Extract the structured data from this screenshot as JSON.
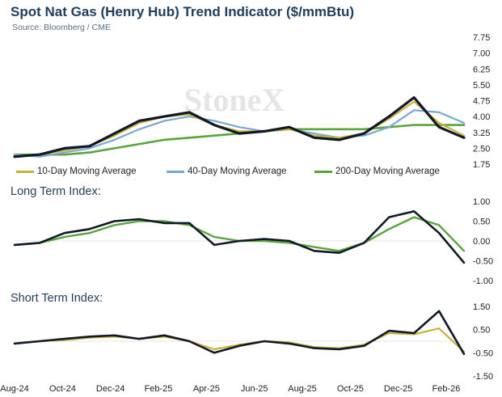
{
  "header": {
    "title": "Spot Nat Gas (Henry Hub) Trend Indicator ($/mmBtu)",
    "source": "Source: Bloomberg / CME",
    "watermark": "StoneX"
  },
  "panels": {
    "long_term_label": "Long Term Index:",
    "short_term_label": "Short Term Index:"
  },
  "colors": {
    "spot": "#111827",
    "ma10": "#c8b23c",
    "ma40": "#7aa8d2",
    "ma200": "#5aa43c",
    "title": "#1f3d5c"
  },
  "chart_data": [
    {
      "type": "line",
      "title": "Spot Nat Gas (Henry Hub) Trend Indicator ($/mmBtu)",
      "ylim": [
        1.75,
        7.75
      ],
      "yticks": [
        "7.75",
        "7.00",
        "6.25",
        "5.50",
        "4.75",
        "4.00",
        "3.25",
        "2.50",
        "1.75"
      ],
      "x": [
        "2024-08",
        "2024-09",
        "2024-10",
        "2024-11",
        "2024-12",
        "2025-01",
        "2025-02",
        "2025-03",
        "2025-04",
        "2025-05",
        "2025-06",
        "2025-07",
        "2025-08",
        "2025-09",
        "2025-10",
        "2025-11",
        "2025-12",
        "2026-01",
        "2026-02"
      ],
      "series": [
        {
          "name": "Spot",
          "values": [
            2.1,
            2.2,
            2.5,
            2.6,
            3.2,
            3.8,
            4.0,
            4.2,
            3.6,
            3.2,
            3.3,
            3.5,
            3.0,
            2.9,
            3.2,
            4.0,
            4.9,
            3.5,
            3.0
          ]
        },
        {
          "name": "10-Day Moving Average",
          "values": [
            2.1,
            2.2,
            2.4,
            2.6,
            3.1,
            3.7,
            4.0,
            4.1,
            3.6,
            3.3,
            3.3,
            3.4,
            3.1,
            3.0,
            3.2,
            3.9,
            4.7,
            3.7,
            3.1
          ]
        },
        {
          "name": "40-Day Moving Average",
          "values": [
            2.2,
            2.1,
            2.3,
            2.5,
            2.9,
            3.4,
            3.8,
            4.0,
            3.8,
            3.5,
            3.3,
            3.4,
            3.2,
            3.0,
            3.1,
            3.5,
            4.3,
            4.2,
            3.7
          ]
        },
        {
          "name": "200-Day Moving Average",
          "values": [
            2.2,
            2.2,
            2.2,
            2.3,
            2.5,
            2.7,
            2.9,
            3.0,
            3.1,
            3.2,
            3.3,
            3.4,
            3.4,
            3.4,
            3.4,
            3.5,
            3.6,
            3.6,
            3.6
          ]
        }
      ],
      "legend": [
        "10-Day Moving Average",
        "40-Day Moving Average",
        "200-Day Moving Average"
      ],
      "legend_position": "bottom"
    },
    {
      "type": "line",
      "title": "Long Term Index:",
      "ylim": [
        -1.0,
        1.0
      ],
      "yticks": [
        "1.00",
        "0.50",
        "0.00",
        "-0.50",
        "-1.00"
      ],
      "x": [
        "2024-08",
        "2024-09",
        "2024-10",
        "2024-11",
        "2024-12",
        "2025-01",
        "2025-02",
        "2025-03",
        "2025-04",
        "2025-05",
        "2025-06",
        "2025-07",
        "2025-08",
        "2025-09",
        "2025-10",
        "2025-11",
        "2025-12",
        "2026-01",
        "2026-02"
      ],
      "series": [
        {
          "values": [
            -0.1,
            -0.05,
            0.2,
            0.3,
            0.5,
            0.55,
            0.45,
            0.45,
            -0.1,
            0.0,
            0.05,
            0.0,
            -0.25,
            -0.3,
            -0.05,
            0.6,
            0.75,
            0.2,
            -0.55
          ]
        },
        {
          "values": [
            -0.1,
            -0.05,
            0.1,
            0.2,
            0.4,
            0.5,
            0.5,
            0.4,
            0.1,
            0.0,
            0.0,
            -0.05,
            -0.15,
            -0.25,
            -0.05,
            0.3,
            0.6,
            0.4,
            -0.25
          ]
        }
      ]
    },
    {
      "type": "line",
      "title": "Short Term Index:",
      "ylim": [
        -1.5,
        1.5
      ],
      "yticks": [
        "1.50",
        "0.50",
        "-0.50",
        "-1.50"
      ],
      "xticks": [
        "Aug-24",
        "Oct-24",
        "Dec-24",
        "Feb-25",
        "Apr-25",
        "Jun-25",
        "Aug-25",
        "Oct-25",
        "Dec-25",
        "Feb-26"
      ],
      "x": [
        "2024-08",
        "2024-09",
        "2024-10",
        "2024-11",
        "2024-12",
        "2025-01",
        "2025-02",
        "2025-03",
        "2025-04",
        "2025-05",
        "2025-06",
        "2025-07",
        "2025-08",
        "2025-09",
        "2025-10",
        "2025-11",
        "2025-12",
        "2026-01",
        "2026-02"
      ],
      "series": [
        {
          "values": [
            -0.1,
            0.0,
            0.1,
            0.2,
            0.25,
            0.1,
            0.25,
            0.0,
            -0.5,
            -0.2,
            0.0,
            -0.1,
            -0.3,
            -0.35,
            -0.2,
            0.45,
            0.35,
            1.3,
            -0.55
          ]
        },
        {
          "values": [
            -0.1,
            0.0,
            0.05,
            0.15,
            0.2,
            0.1,
            0.2,
            0.0,
            -0.35,
            -0.15,
            0.0,
            -0.05,
            -0.25,
            -0.3,
            -0.15,
            0.35,
            0.3,
            0.55,
            -0.45
          ]
        }
      ]
    }
  ]
}
